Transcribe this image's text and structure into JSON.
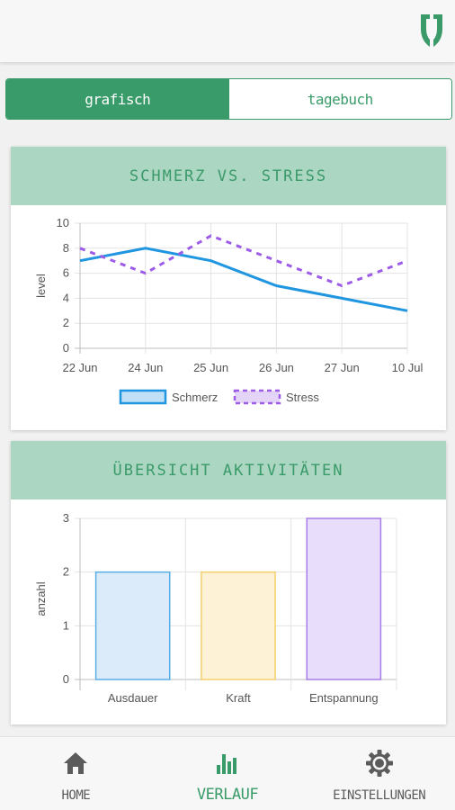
{
  "header": {
    "logo_icon": "app-logo-icon"
  },
  "tabs": [
    {
      "label": "grafisch",
      "active": true
    },
    {
      "label": "tagebuch",
      "active": false
    }
  ],
  "cards": {
    "pain_stress": {
      "title": "SCHMERZ VS. STRESS"
    },
    "activities": {
      "title": "ÜBERSICHT AKTIVITÄTEN"
    }
  },
  "chart_data": [
    {
      "type": "line",
      "title": "SCHMERZ VS. STRESS",
      "categories": [
        "22 Jun",
        "24 Jun",
        "25 Jun",
        "26 Jun",
        "27 Jun",
        "10 Jul"
      ],
      "series": [
        {
          "name": "Schmerz",
          "values": [
            7,
            8,
            7,
            5,
            4,
            3
          ],
          "color": "#2196e0",
          "style": "solid"
        },
        {
          "name": "Stress",
          "values": [
            8,
            6,
            9,
            7,
            5,
            7
          ],
          "color": "#9d5ce8",
          "style": "dashed"
        }
      ],
      "ylabel": "level",
      "ylim": [
        0,
        10
      ],
      "yticks": [
        "0",
        "2",
        "4",
        "6",
        "8",
        "10"
      ],
      "grid": true,
      "legend": "bottom"
    },
    {
      "type": "bar",
      "title": "ÜBERSICHT AKTIVITÄTEN",
      "categories": [
        "Ausdauer",
        "Kraft",
        "Entspannung"
      ],
      "values": [
        2,
        2,
        3
      ],
      "colors": [
        {
          "fill": "#dcebfa",
          "stroke": "#5aaee6"
        },
        {
          "fill": "#fdf1d6",
          "stroke": "#f5cf6e"
        },
        {
          "fill": "#e8ddfb",
          "stroke": "#a87de8"
        }
      ],
      "ylabel": "anzahl",
      "ylim": [
        0,
        3
      ],
      "yticks": [
        "0",
        "1",
        "2",
        "3"
      ],
      "grid": true
    }
  ],
  "nav": {
    "items": [
      {
        "label": "HOME",
        "icon": "home-icon",
        "active": false
      },
      {
        "label": "VERLAUF",
        "icon": "bar-chart-icon",
        "active": true
      },
      {
        "label": "EINSTELLUNGEN",
        "icon": "gear-icon",
        "active": false
      }
    ]
  },
  "colors": {
    "accent": "#389b69",
    "card_header": "#abd6c1"
  }
}
